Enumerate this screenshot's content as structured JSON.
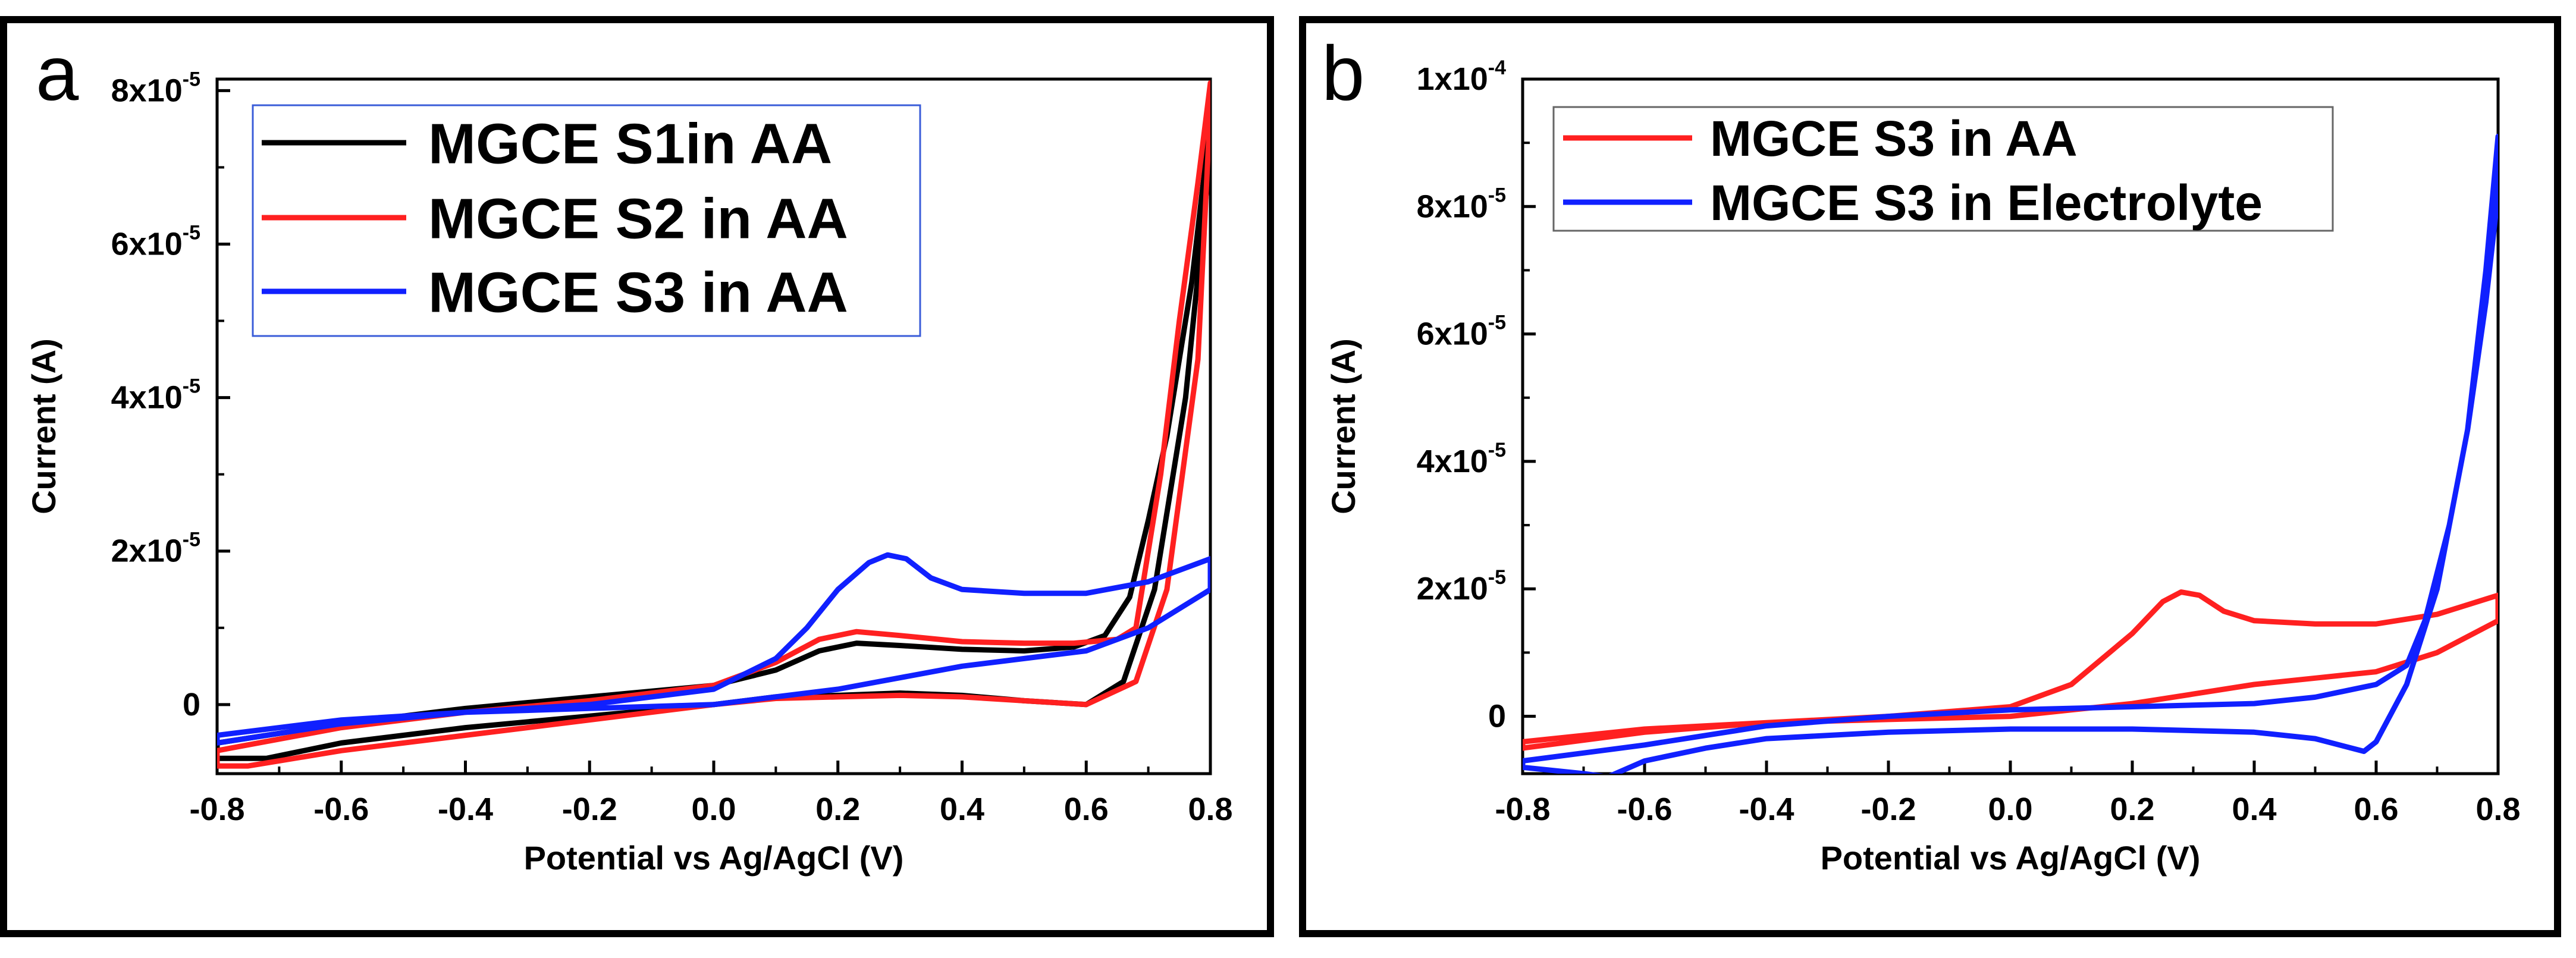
{
  "chart_data": [
    {
      "panel_label": "a",
      "type": "line",
      "xlabel": "Potential vs Ag/AgCl (V)",
      "ylabel": "Current (A)",
      "xlim": [
        -0.8,
        0.8
      ],
      "ylim": [
        -9e-06,
        8.15e-05
      ],
      "x_ticks": [
        -0.8,
        -0.6,
        -0.4,
        -0.2,
        0.0,
        0.2,
        0.4,
        0.6,
        0.8
      ],
      "x_tick_labels": [
        "-0.8",
        "-0.6",
        "-0.4",
        "-0.2",
        "0.0",
        "0.2",
        "0.4",
        "0.6",
        "0.8"
      ],
      "y_ticks": [
        0,
        2e-05,
        4e-05,
        6e-05,
        8e-05
      ],
      "y_tick_labels": [
        {
          "mant": "0",
          "exp": ""
        },
        {
          "mant": "2x10",
          "exp": "-5"
        },
        {
          "mant": "4x10",
          "exp": "-5"
        },
        {
          "mant": "6x10",
          "exp": "-5"
        },
        {
          "mant": "8x10",
          "exp": "-5"
        }
      ],
      "legend_position": "top-left",
      "series": [
        {
          "name": "MGCE S1in AA",
          "color": "#000000",
          "points": [
            [
              -0.8,
              -7
            ],
            [
              -0.72,
              -7
            ],
            [
              -0.6,
              -5
            ],
            [
              -0.4,
              -3
            ],
            [
              -0.2,
              -1.5
            ],
            [
              0,
              0
            ],
            [
              0.1,
              1
            ],
            [
              0.2,
              1.2
            ],
            [
              0.3,
              1.5
            ],
            [
              0.4,
              1.2
            ],
            [
              0.5,
              0.5
            ],
            [
              0.6,
              0
            ],
            [
              0.66,
              3
            ],
            [
              0.71,
              15
            ],
            [
              0.76,
              40
            ],
            [
              0.8,
              72
            ],
            [
              0.8,
              76
            ],
            [
              0.77,
              55
            ],
            [
              0.73,
              35
            ],
            [
              0.7,
              24
            ],
            [
              0.67,
              14
            ],
            [
              0.63,
              9
            ],
            [
              0.58,
              7.5
            ],
            [
              0.5,
              7
            ],
            [
              0.4,
              7.2
            ],
            [
              0.3,
              7.7
            ],
            [
              0.23,
              8
            ],
            [
              0.17,
              7
            ],
            [
              0.1,
              4.5
            ],
            [
              0,
              2.5
            ],
            [
              -0.2,
              1
            ],
            [
              -0.4,
              -0.5
            ],
            [
              -0.6,
              -2.5
            ],
            [
              -0.8,
              -5
            ]
          ]
        },
        {
          "name": "MGCE S2 in AA",
          "color": "#ff2020",
          "points": [
            [
              -0.8,
              -8
            ],
            [
              -0.75,
              -8
            ],
            [
              -0.6,
              -6
            ],
            [
              -0.4,
              -4
            ],
            [
              -0.2,
              -2
            ],
            [
              0,
              0
            ],
            [
              0.1,
              0.8
            ],
            [
              0.2,
              1
            ],
            [
              0.3,
              1.2
            ],
            [
              0.4,
              1
            ],
            [
              0.5,
              0.5
            ],
            [
              0.6,
              0
            ],
            [
              0.68,
              3
            ],
            [
              0.73,
              15
            ],
            [
              0.78,
              45
            ],
            [
              0.8,
              78
            ],
            [
              0.8,
              81
            ],
            [
              0.78,
              68
            ],
            [
              0.75,
              50
            ],
            [
              0.72,
              30
            ],
            [
              0.68,
              10
            ],
            [
              0.65,
              8.5
            ],
            [
              0.58,
              8
            ],
            [
              0.5,
              8
            ],
            [
              0.4,
              8.2
            ],
            [
              0.3,
              9
            ],
            [
              0.23,
              9.5
            ],
            [
              0.17,
              8.5
            ],
            [
              0.1,
              5.5
            ],
            [
              0,
              2.5
            ],
            [
              -0.2,
              0.5
            ],
            [
              -0.4,
              -1
            ],
            [
              -0.6,
              -3
            ],
            [
              -0.8,
              -6
            ]
          ]
        },
        {
          "name": "MGCE S3 in AA",
          "color": "#1020ff",
          "points": [
            [
              -0.8,
              -4
            ],
            [
              -0.6,
              -2
            ],
            [
              -0.4,
              -1
            ],
            [
              -0.2,
              -0.5
            ],
            [
              0,
              0
            ],
            [
              0.1,
              1
            ],
            [
              0.2,
              2
            ],
            [
              0.3,
              3.5
            ],
            [
              0.4,
              5
            ],
            [
              0.5,
              6
            ],
            [
              0.6,
              7
            ],
            [
              0.7,
              10
            ],
            [
              0.8,
              15
            ],
            [
              0.8,
              19
            ],
            [
              0.7,
              16
            ],
            [
              0.6,
              14.5
            ],
            [
              0.5,
              14.5
            ],
            [
              0.4,
              15
            ],
            [
              0.35,
              16.5
            ],
            [
              0.31,
              19
            ],
            [
              0.28,
              19.5
            ],
            [
              0.25,
              18.5
            ],
            [
              0.2,
              15
            ],
            [
              0.15,
              10
            ],
            [
              0.1,
              6
            ],
            [
              0,
              2
            ],
            [
              -0.2,
              0
            ],
            [
              -0.4,
              -1
            ],
            [
              -0.6,
              -2.5
            ],
            [
              -0.8,
              -5
            ]
          ]
        }
      ]
    },
    {
      "panel_label": "b",
      "type": "line",
      "xlabel": "Potential vs Ag/AgCl (V)",
      "ylabel": "Current (A)",
      "xlim": [
        -0.8,
        0.8
      ],
      "ylim": [
        -9e-06,
        0.0001
      ],
      "x_ticks": [
        -0.8,
        -0.6,
        -0.4,
        -0.2,
        0.0,
        0.2,
        0.4,
        0.6,
        0.8
      ],
      "x_tick_labels": [
        "-0.8",
        "-0.6",
        "-0.4",
        "-0.2",
        "0.0",
        "0.2",
        "0.4",
        "0.6",
        "0.8"
      ],
      "y_ticks": [
        0,
        2e-05,
        4e-05,
        6e-05,
        8e-05,
        0.0001
      ],
      "y_tick_labels": [
        {
          "mant": "0",
          "exp": ""
        },
        {
          "mant": "2x10",
          "exp": "-5"
        },
        {
          "mant": "4x10",
          "exp": "-5"
        },
        {
          "mant": "6x10",
          "exp": "-5"
        },
        {
          "mant": "8x10",
          "exp": "-5"
        },
        {
          "mant": "1x10",
          "exp": "-4"
        }
      ],
      "legend_position": "top-left",
      "series": [
        {
          "name": "MGCE S3 in AA",
          "color": "#ff2020",
          "points": [
            [
              -0.8,
              -5
            ],
            [
              -0.6,
              -2.5
            ],
            [
              -0.4,
              -1
            ],
            [
              -0.2,
              0
            ],
            [
              0,
              1.5
            ],
            [
              0.1,
              5
            ],
            [
              0.2,
              13
            ],
            [
              0.25,
              18
            ],
            [
              0.28,
              19.5
            ],
            [
              0.31,
              19
            ],
            [
              0.35,
              16.5
            ],
            [
              0.4,
              15
            ],
            [
              0.5,
              14.5
            ],
            [
              0.6,
              14.5
            ],
            [
              0.7,
              16
            ],
            [
              0.8,
              19
            ],
            [
              0.8,
              15
            ],
            [
              0.7,
              10
            ],
            [
              0.6,
              7
            ],
            [
              0.5,
              6
            ],
            [
              0.4,
              5
            ],
            [
              0.3,
              3.5
            ],
            [
              0.2,
              2
            ],
            [
              0.1,
              1
            ],
            [
              0,
              0
            ],
            [
              -0.2,
              -0.5
            ],
            [
              -0.4,
              -1
            ],
            [
              -0.6,
              -2
            ],
            [
              -0.8,
              -4
            ]
          ]
        },
        {
          "name": "MGCE S3 in Electrolyte",
          "color": "#1020ff",
          "points": [
            [
              -0.8,
              -8
            ],
            [
              -0.7,
              -9
            ],
            [
              -0.66,
              -9.5
            ],
            [
              -0.6,
              -7
            ],
            [
              -0.5,
              -5
            ],
            [
              -0.4,
              -3.5
            ],
            [
              -0.2,
              -2.5
            ],
            [
              0,
              -2
            ],
            [
              0.2,
              -2
            ],
            [
              0.4,
              -2.5
            ],
            [
              0.5,
              -3.5
            ],
            [
              0.58,
              -5.5
            ],
            [
              0.6,
              -4
            ],
            [
              0.65,
              5
            ],
            [
              0.7,
              20
            ],
            [
              0.75,
              45
            ],
            [
              0.78,
              70
            ],
            [
              0.8,
              91
            ],
            [
              0.8,
              82
            ],
            [
              0.78,
              65
            ],
            [
              0.75,
              45
            ],
            [
              0.72,
              30
            ],
            [
              0.68,
              15
            ],
            [
              0.65,
              8
            ],
            [
              0.6,
              5
            ],
            [
              0.5,
              3
            ],
            [
              0.4,
              2
            ],
            [
              0.2,
              1.5
            ],
            [
              0,
              1
            ],
            [
              -0.2,
              0
            ],
            [
              -0.4,
              -1.5
            ],
            [
              -0.6,
              -4.5
            ],
            [
              -0.8,
              -7
            ]
          ]
        }
      ]
    }
  ]
}
